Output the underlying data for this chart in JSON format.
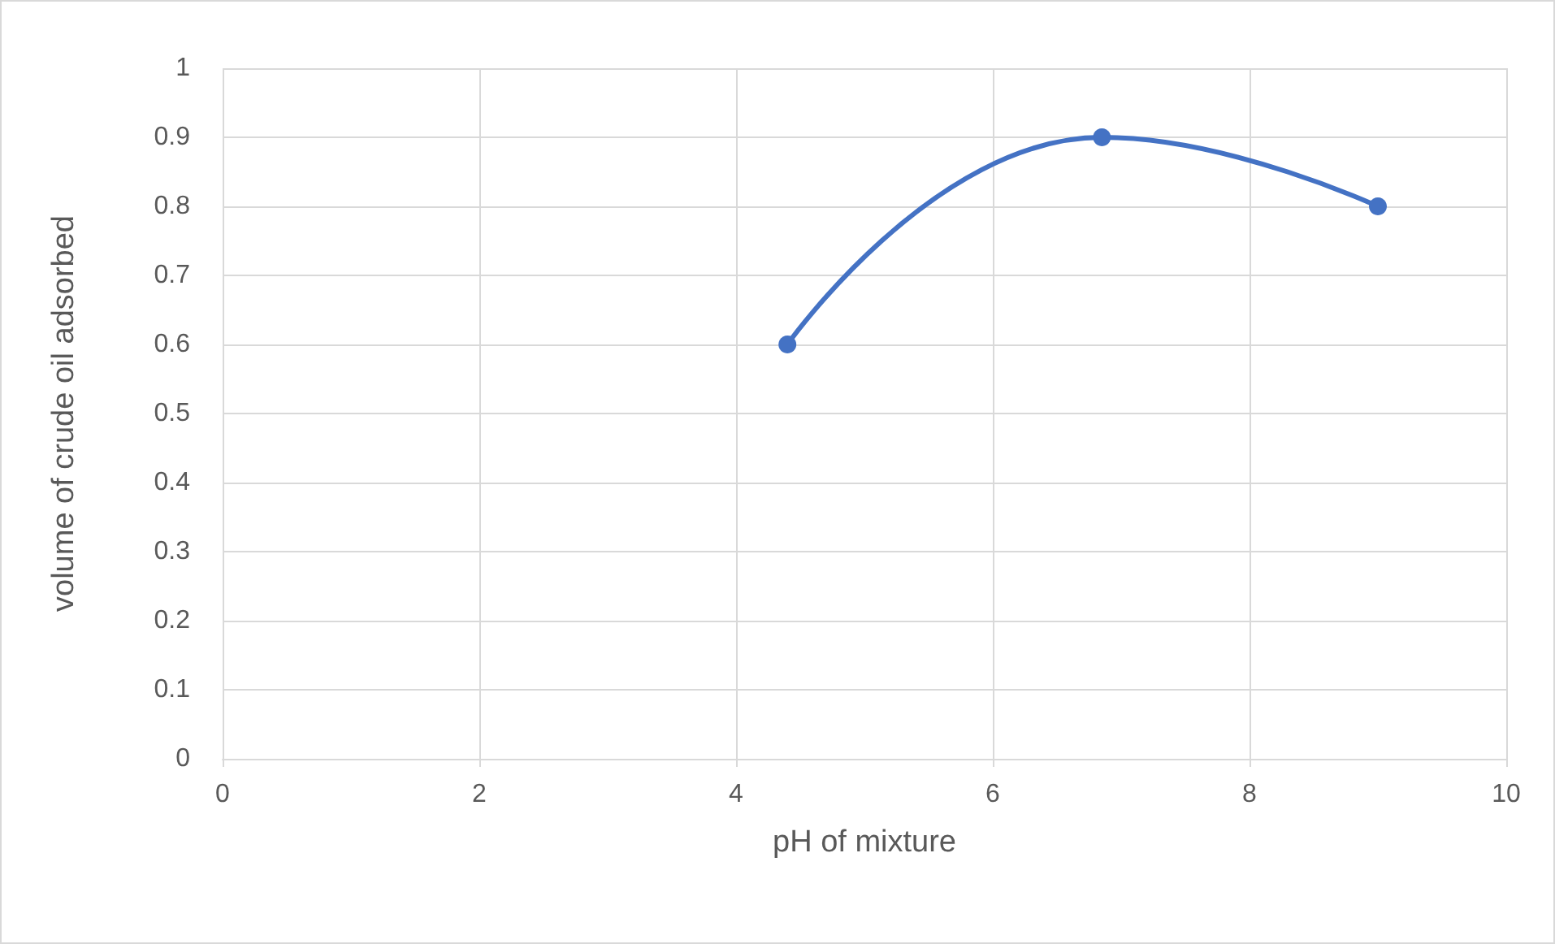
{
  "chart_data": {
    "type": "line",
    "xlabel": "pH of mixture",
    "ylabel": "volume of crude oil adsorbed",
    "series": [
      {
        "color": "#4472c4",
        "x": [
          4.4,
          6.85,
          9
        ],
        "values": [
          0.6,
          0.9,
          0.8
        ]
      }
    ],
    "xlim": [
      0,
      10
    ],
    "xticks": [
      0,
      2,
      4,
      6,
      8,
      10
    ],
    "ylim": [
      0,
      1
    ],
    "yticks": [
      0,
      0.1,
      0.2,
      0.3,
      0.4,
      0.5,
      0.6,
      0.7,
      0.8,
      0.9,
      1
    ],
    "grid": true,
    "marker": "circle",
    "line_style": "solid"
  }
}
